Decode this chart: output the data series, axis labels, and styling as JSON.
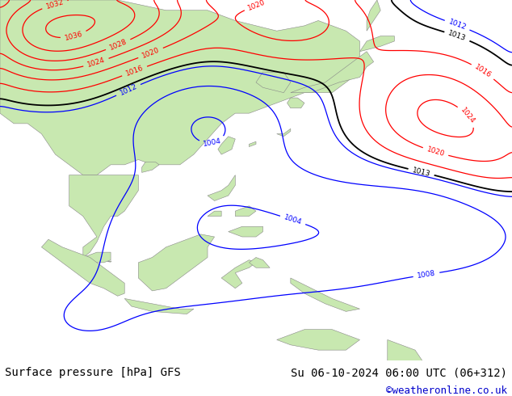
{
  "title_left": "Surface pressure [hPa] GFS",
  "title_right": "Su 06-10-2024 06:00 UTC (06+312)",
  "credit": "©weatheronline.co.uk",
  "credit_color": "#0000cc",
  "background_color": "#ffffff",
  "map_bg_color": "#d8d8d8",
  "land_color": "#c8e8b0",
  "isobar_values": [
    1004,
    1008,
    1012,
    1013,
    1016,
    1020,
    1024,
    1028,
    1032
  ],
  "red_isobar_values": [
    1016,
    1020,
    1024,
    1028,
    1032
  ],
  "blue_isobar_values": [
    1008,
    1012
  ],
  "black_isobar_values": [
    1013
  ],
  "bottom_bar_color": "#e0e0e0",
  "title_fontsize": 10,
  "credit_fontsize": 9,
  "figsize": [
    6.34,
    4.9
  ],
  "dpi": 100,
  "lon_min": 88,
  "lon_max": 162,
  "lat_min": -18,
  "lat_max": 52
}
